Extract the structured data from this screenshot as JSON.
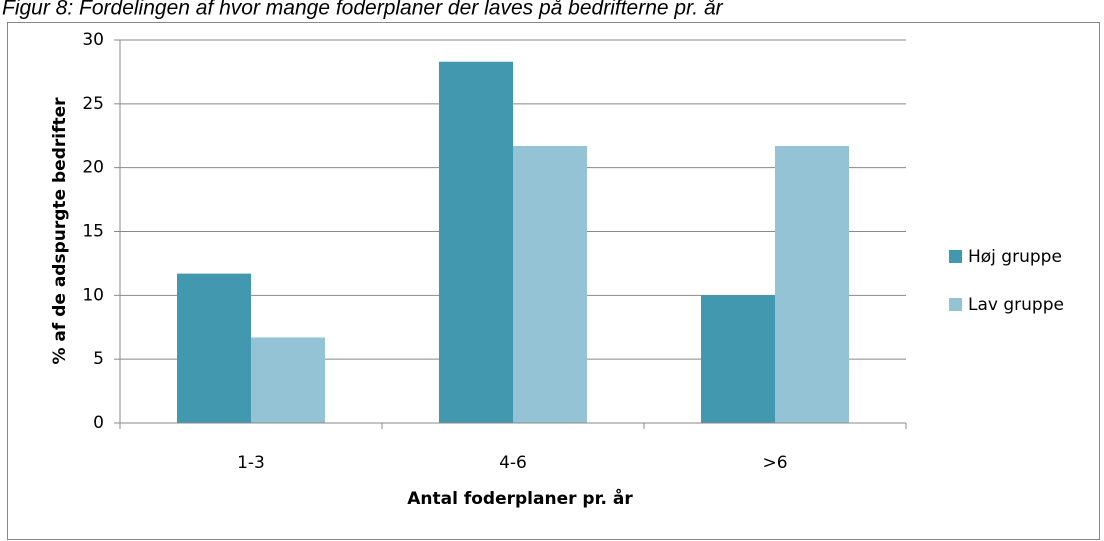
{
  "chart_data": {
    "type": "bar",
    "title": "Figur 8: Fordelingen af hvor mange foderplaner der laves på bedrifterne pr. år",
    "x_label": "Antal foderplaner pr. år",
    "y_label": "% af de adspurgte bedrifter",
    "categories": [
      "1-3",
      "4-6",
      ">6"
    ],
    "series": [
      {
        "name": "Høj gruppe",
        "color": "#4198af",
        "values": [
          11.7,
          28.3,
          10
        ]
      },
      {
        "name": "Lav gruppe",
        "color": "#93c3d4",
        "values": [
          6.7,
          21.7,
          21.7
        ]
      }
    ],
    "ylim": [
      0,
      30
    ],
    "yticks": [
      0,
      5,
      10,
      15,
      20,
      25,
      30
    ],
    "grid": true,
    "legend": "right"
  }
}
